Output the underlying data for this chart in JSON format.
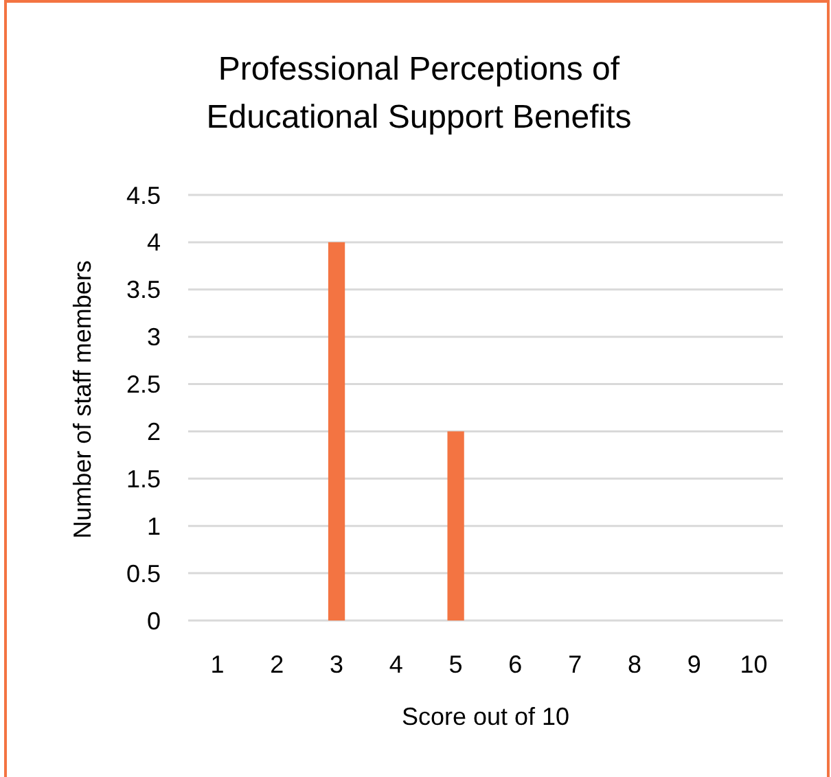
{
  "chart_data": {
    "type": "bar",
    "title": "Professional Perceptions of\nEducational Support Benefits",
    "xlabel": "Score out of 10",
    "ylabel": "Number of staff members",
    "categories": [
      "1",
      "2",
      "3",
      "4",
      "5",
      "6",
      "7",
      "8",
      "9",
      "10"
    ],
    "values": [
      0,
      0,
      4,
      0,
      2,
      0,
      0,
      0,
      0,
      0
    ],
    "color": "#f37442",
    "ylim": [
      0,
      4.5
    ],
    "yticks": [
      0,
      0.5,
      1,
      1.5,
      2,
      2.5,
      3,
      3.5,
      4,
      4.5
    ],
    "grid": "y"
  }
}
